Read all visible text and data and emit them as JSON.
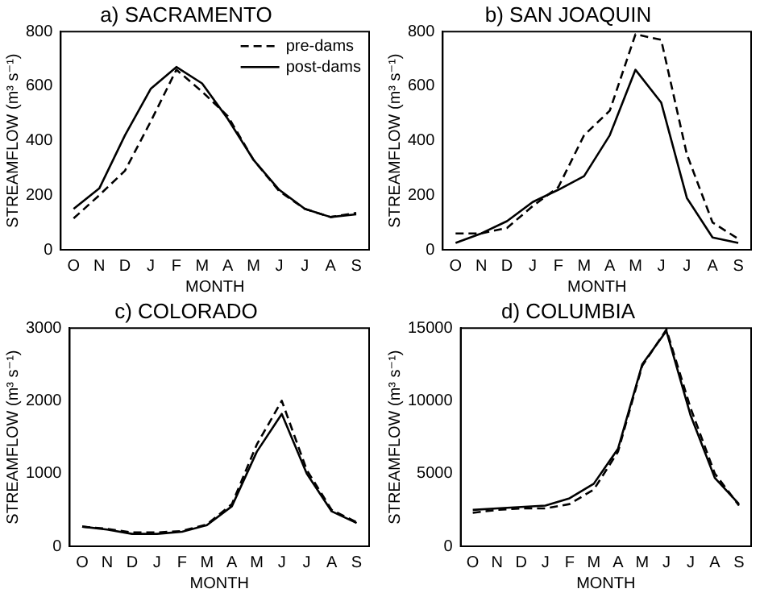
{
  "chart_data": [
    {
      "type": "line",
      "title": "a) SACRAMENTO",
      "xlabel": "MONTH",
      "ylabel": "STREAMFLOW (m³ s⁻¹)",
      "categories": [
        "O",
        "N",
        "D",
        "J",
        "F",
        "M",
        "A",
        "M",
        "J",
        "J",
        "A",
        "S"
      ],
      "series": [
        {
          "name": "pre-dams",
          "color": "#000000",
          "line_style": "dashed",
          "values": [
            115,
            200,
            290,
            470,
            660,
            580,
            490,
            330,
            215,
            150,
            120,
            135
          ]
        },
        {
          "name": "post-dams",
          "color": "#000000",
          "line_style": "solid",
          "values": [
            150,
            225,
            420,
            590,
            670,
            610,
            480,
            330,
            220,
            150,
            120,
            130
          ]
        }
      ],
      "ylim": [
        0,
        800
      ],
      "yticks": [
        0,
        200,
        400,
        600,
        800
      ],
      "grid": false,
      "legend": "top right",
      "marker": "none"
    },
    {
      "type": "line",
      "title": "b) SAN JOAQUIN",
      "xlabel": "MONTH",
      "ylabel": "STREAMFLOW (m³ s⁻¹)",
      "categories": [
        "O",
        "N",
        "D",
        "J",
        "F",
        "M",
        "A",
        "M",
        "J",
        "J",
        "A",
        "S"
      ],
      "series": [
        {
          "color": "#000000",
          "line_style": "dashed",
          "values": [
            60,
            60,
            80,
            160,
            230,
            420,
            510,
            790,
            770,
            350,
            100,
            40
          ]
        },
        {
          "color": "#000000",
          "line_style": "solid",
          "values": [
            25,
            60,
            105,
            175,
            220,
            270,
            420,
            660,
            540,
            190,
            45,
            25
          ]
        }
      ],
      "ylim": [
        0,
        800
      ],
      "yticks": [
        0,
        200,
        400,
        600,
        800
      ],
      "grid": false,
      "legend": false,
      "marker": "none"
    },
    {
      "type": "line",
      "title": "c) COLORADO",
      "xlabel": "MONTH",
      "ylabel": "STREAMFLOW (m³ s⁻¹)",
      "categories": [
        "O",
        "N",
        "D",
        "J",
        "F",
        "M",
        "A",
        "M",
        "J",
        "J",
        "A",
        "S"
      ],
      "series": [
        {
          "color": "#000000",
          "line_style": "dashed",
          "values": [
            270,
            240,
            190,
            190,
            210,
            300,
            580,
            1400,
            2000,
            1050,
            500,
            330
          ]
        },
        {
          "color": "#000000",
          "line_style": "solid",
          "values": [
            270,
            230,
            170,
            170,
            200,
            290,
            550,
            1300,
            1820,
            1000,
            480,
            320
          ]
        }
      ],
      "ylim": [
        0,
        3000
      ],
      "yticks": [
        0,
        1000,
        2000,
        3000
      ],
      "grid": false,
      "legend": false,
      "marker": "none"
    },
    {
      "type": "line",
      "title": "d) COLUMBIA",
      "xlabel": "MONTH",
      "ylabel": "STREAMFLOW (m³ s⁻¹)",
      "categories": [
        "O",
        "N",
        "D",
        "J",
        "F",
        "M",
        "A",
        "M",
        "J",
        "J",
        "A",
        "S"
      ],
      "series": [
        {
          "color": "#000000",
          "line_style": "dashed",
          "values": [
            2300,
            2500,
            2600,
            2600,
            2900,
            3900,
            6500,
            12400,
            14900,
            9500,
            5000,
            2800
          ]
        },
        {
          "color": "#000000",
          "line_style": "solid",
          "values": [
            2500,
            2600,
            2700,
            2800,
            3300,
            4300,
            6700,
            12500,
            14800,
            9000,
            4700,
            2900
          ]
        }
      ],
      "ylim": [
        0,
        15000
      ],
      "yticks": [
        0,
        5000,
        10000,
        15000
      ],
      "grid": false,
      "legend": false,
      "marker": "none"
    }
  ]
}
